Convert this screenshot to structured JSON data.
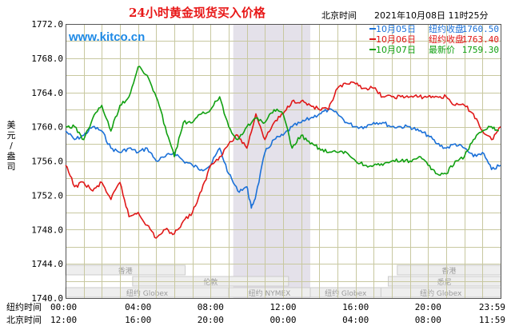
{
  "chart_data": {
    "type": "line",
    "title": "24小时黄金现货买入价格",
    "subtitle_label": "北京时间",
    "timestamp": "2021年10月08日 11时25分",
    "watermark": "www.kitco.cn",
    "ylabel": "美元/盎司",
    "ylim": [
      1740.0,
      1772.0
    ],
    "yticks": [
      "1772.0",
      "1768.0",
      "1764.0",
      "1760.0",
      "1756.0",
      "1752.0",
      "1748.0",
      "1744.0",
      "1740.0"
    ],
    "x_row1_label": "纽约时间",
    "x_row1_ticks": [
      "00:00",
      "04:00",
      "08:00",
      "12:00",
      "16:00",
      "20:00",
      "23:59"
    ],
    "x_row2_label": "北京时间",
    "x_row2_ticks": [
      "12:00",
      "16:00",
      "20:00",
      "00:00",
      "04:00",
      "08:00",
      "11:59"
    ],
    "x_range_hours": [
      0,
      24
    ],
    "shaded_region": [
      9.25,
      13.5
    ],
    "legend": [
      {
        "date": "10月05日",
        "label": "纽约收盘",
        "value": "1760.50",
        "color": "#1a70d8"
      },
      {
        "date": "10月06日",
        "label": "纽约收盘",
        "value": "1763.40",
        "color": "#e01818"
      },
      {
        "date": "10月07日",
        "label": "最新价",
        "value": "1759.30",
        "color": "#10a010"
      }
    ],
    "sessions": {
      "row1": [
        "香港",
        "香港"
      ],
      "row2": [
        "伦敦",
        "悉尼"
      ],
      "row3": [
        "纽约 Globex",
        "纽约 NYMEX",
        "纽约 Globex",
        "纽约 Globex"
      ]
    },
    "series": [
      {
        "name": "10月05日",
        "color": "#1a70d8",
        "x": [
          0,
          0.5,
          1,
          1.5,
          2,
          2.5,
          3,
          3.5,
          4,
          4.5,
          5,
          5.5,
          6,
          6.5,
          7,
          7.5,
          8,
          8.5,
          9,
          9.5,
          10,
          10.25,
          10.5,
          11,
          11.5,
          12,
          12.5,
          13,
          13.5,
          14,
          14.5,
          15,
          15.5,
          16,
          16.5,
          17,
          17.5,
          18,
          18.5,
          19,
          19.5,
          20,
          20.5,
          21,
          21.5,
          22,
          22.5,
          23,
          23.5,
          24
        ],
        "values": [
          1759.5,
          1758.5,
          1759.0,
          1760.0,
          1759.5,
          1757.5,
          1757.0,
          1757.5,
          1757.0,
          1757.5,
          1756.0,
          1756.5,
          1757.0,
          1756.0,
          1755.5,
          1755.0,
          1755.5,
          1757.5,
          1754.5,
          1752.5,
          1753.0,
          1750.5,
          1752.0,
          1757.0,
          1758.5,
          1759.0,
          1760.0,
          1760.5,
          1761.0,
          1761.5,
          1762.0,
          1761.5,
          1760.5,
          1760.0,
          1760.0,
          1760.5,
          1760.5,
          1760.0,
          1760.0,
          1760.0,
          1759.5,
          1759.0,
          1758.0,
          1757.5,
          1758.0,
          1757.5,
          1756.5,
          1757.0,
          1755.0,
          1755.5
        ]
      },
      {
        "name": "10月06日",
        "color": "#e01818",
        "x": [
          0,
          0.5,
          1,
          1.5,
          2,
          2.5,
          3,
          3.5,
          4,
          4.5,
          5,
          5.5,
          6,
          6.5,
          7,
          7.5,
          8,
          8.5,
          9,
          9.5,
          10,
          10.5,
          11,
          11.5,
          12,
          12.5,
          13,
          13.5,
          14,
          14.5,
          15,
          15.5,
          16,
          16.5,
          17,
          17.5,
          18,
          18.5,
          19,
          19.5,
          20,
          20.5,
          21,
          21.5,
          22,
          22.5,
          23,
          23.5,
          24
        ],
        "values": [
          1755.5,
          1753.0,
          1753.5,
          1752.5,
          1753.5,
          1751.5,
          1753.5,
          1749.5,
          1750.0,
          1748.5,
          1747.0,
          1748.0,
          1747.5,
          1749.0,
          1750.0,
          1752.5,
          1755.5,
          1756.5,
          1758.0,
          1759.0,
          1757.5,
          1761.5,
          1758.5,
          1760.5,
          1761.5,
          1763.0,
          1763.0,
          1762.5,
          1762.0,
          1762.0,
          1764.5,
          1765.0,
          1765.0,
          1764.5,
          1764.5,
          1763.5,
          1763.5,
          1763.5,
          1763.5,
          1763.5,
          1763.5,
          1763.5,
          1763.5,
          1762.5,
          1762.5,
          1761.5,
          1759.5,
          1758.5,
          1760.0
        ]
      },
      {
        "name": "10月07日",
        "color": "#10a010",
        "x": [
          0,
          0.5,
          1,
          1.5,
          2,
          2.5,
          3,
          3.5,
          4,
          4.5,
          5,
          5.5,
          6,
          6.5,
          7,
          7.5,
          8,
          8.5,
          9,
          9.5,
          10,
          10.5,
          11,
          11.5,
          12,
          12.5,
          13,
          13.5,
          14,
          14.5,
          15,
          15.5,
          16,
          16.5,
          17,
          17.5,
          18,
          18.5,
          19,
          19.5,
          20,
          20.5,
          21,
          21.5,
          22,
          22.5,
          23,
          23.5,
          23.9
        ],
        "values": [
          1760.0,
          1760.0,
          1758.5,
          1761.0,
          1762.5,
          1759.5,
          1762.5,
          1763.5,
          1767.0,
          1766.0,
          1763.5,
          1760.0,
          1756.5,
          1760.5,
          1760.5,
          1761.5,
          1762.0,
          1763.5,
          1760.0,
          1758.5,
          1760.0,
          1761.0,
          1760.5,
          1762.0,
          1761.5,
          1757.5,
          1759.0,
          1758.0,
          1757.5,
          1757.0,
          1757.0,
          1757.0,
          1756.0,
          1755.5,
          1755.5,
          1755.5,
          1756.0,
          1756.0,
          1756.0,
          1756.5,
          1755.5,
          1754.5,
          1754.5,
          1756.0,
          1756.5,
          1758.5,
          1759.5,
          1760.0,
          1759.5
        ]
      }
    ]
  }
}
